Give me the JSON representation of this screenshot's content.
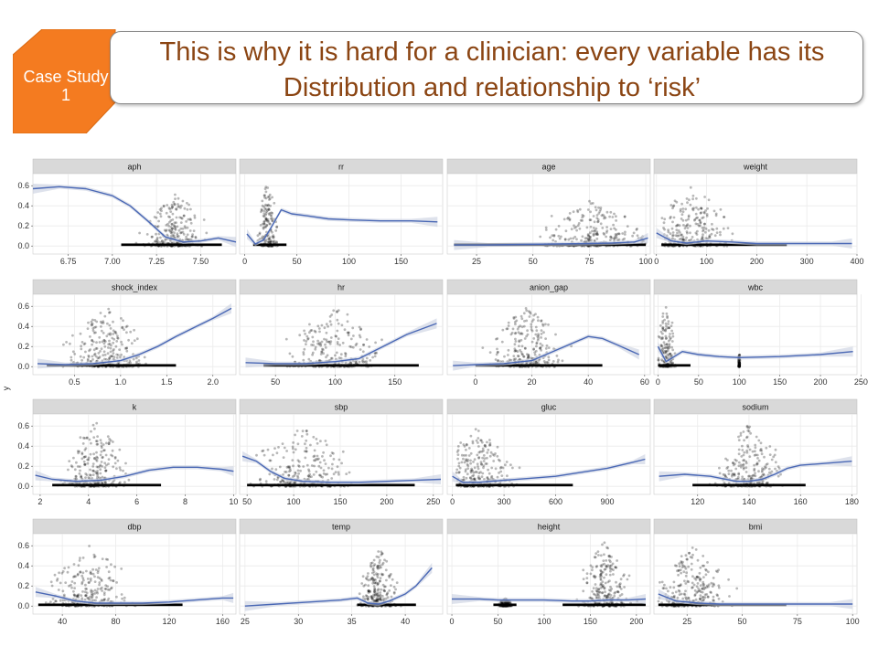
{
  "header": {
    "badge_line1": "Case Study",
    "badge_line2": "1",
    "title_line1": "This is why it is hard for a clinician: every variable has its",
    "title_line2": "Distribution and relationship to ‘risk’"
  },
  "colors": {
    "badge_fill": "#f47b20",
    "title_text": "#8b4513",
    "strip_fill": "#d9d9d9",
    "panel_fill": "#ffffff",
    "grid": "#ebebeb",
    "smooth_line": "#4a68b5",
    "ribbon": "#c8cfe0",
    "points": "#000000"
  },
  "chart_data": {
    "type": "scatter",
    "title": "",
    "ylabel": "y",
    "ylim": [
      -0.08,
      0.72
    ],
    "y_ticks": [
      "0.0",
      "0.2",
      "0.4",
      "0.6"
    ],
    "y_tick_values": [
      0.0,
      0.2,
      0.4,
      0.6
    ],
    "panels": [
      {
        "name": "aph",
        "xlim": [
          6.55,
          7.7
        ],
        "x_ticks": [
          6.75,
          7.0,
          7.25,
          7.5
        ],
        "x_tick_labels": [
          "6.75",
          "7.00",
          "7.25",
          "7.50"
        ],
        "curve": {
          "x": [
            6.55,
            6.7,
            6.85,
            7.0,
            7.1,
            7.2,
            7.3,
            7.4,
            7.5,
            7.6,
            7.7
          ],
          "y": [
            0.57,
            0.59,
            0.57,
            0.5,
            0.4,
            0.25,
            0.09,
            0.04,
            0.05,
            0.08,
            0.04
          ]
        },
        "clouds": [
          {
            "x0": 7.05,
            "x1": 7.62,
            "c": 7.35,
            "h": 0.55
          }
        ]
      },
      {
        "name": "rr",
        "xlim": [
          -5,
          190
        ],
        "x_ticks": [
          0,
          50,
          100,
          150
        ],
        "x_tick_labels": [
          "0",
          "50",
          "100",
          "150"
        ],
        "curve": {
          "x": [
            2,
            10,
            18,
            25,
            35,
            45,
            60,
            80,
            100,
            130,
            160,
            185
          ],
          "y": [
            0.12,
            0.02,
            0.06,
            0.18,
            0.36,
            0.32,
            0.3,
            0.27,
            0.26,
            0.25,
            0.25,
            0.24
          ]
        },
        "clouds": [
          {
            "x0": 8,
            "x1": 40,
            "c": 22,
            "h": 0.65
          }
        ]
      },
      {
        "name": "age",
        "xlim": [
          12,
          102
        ],
        "x_ticks": [
          25,
          50,
          75,
          100
        ],
        "x_tick_labels": [
          "25",
          "50",
          "75",
          "100"
        ],
        "curve": {
          "x": [
            15,
            30,
            45,
            60,
            75,
            85,
            95,
            101
          ],
          "y": [
            0.01,
            0.01,
            0.015,
            0.02,
            0.025,
            0.03,
            0.04,
            0.08
          ]
        },
        "clouds": [
          {
            "x0": 15,
            "x1": 100,
            "c": 75,
            "h": 0.45
          }
        ]
      },
      {
        "name": "weight",
        "xlim": [
          -5,
          400
        ],
        "x_ticks": [
          0,
          100,
          200,
          300,
          400
        ],
        "x_tick_labels": [
          "0",
          "100",
          "200",
          "300",
          "400"
        ],
        "curve": {
          "x": [
            0,
            30,
            60,
            100,
            150,
            200,
            250,
            300,
            350,
            390
          ],
          "y": [
            0.13,
            0.05,
            0.03,
            0.05,
            0.04,
            0.025,
            0.025,
            0.025,
            0.025,
            0.025
          ]
        },
        "clouds": [
          {
            "x0": 10,
            "x1": 260,
            "c": 70,
            "h": 0.6
          }
        ]
      },
      {
        "name": "shock_index",
        "xlim": [
          0.05,
          2.25
        ],
        "x_ticks": [
          0.5,
          1.0,
          1.5,
          2.0
        ],
        "x_tick_labels": [
          "0.5",
          "1.0",
          "1.5",
          "2.0"
        ],
        "curve": {
          "x": [
            0.1,
            0.4,
            0.7,
            1.0,
            1.2,
            1.4,
            1.6,
            1.8,
            2.0,
            2.2
          ],
          "y": [
            0.03,
            0.02,
            0.03,
            0.06,
            0.12,
            0.2,
            0.3,
            0.39,
            0.48,
            0.58
          ]
        },
        "clouds": [
          {
            "x0": 0.2,
            "x1": 1.6,
            "c": 0.85,
            "h": 0.6
          }
        ]
      },
      {
        "name": "hr",
        "xlim": [
          20,
          190
        ],
        "x_ticks": [
          50,
          100,
          150
        ],
        "x_tick_labels": [
          "50",
          "100",
          "150"
        ],
        "curve": {
          "x": [
            25,
            50,
            75,
            100,
            120,
            140,
            160,
            185
          ],
          "y": [
            0.04,
            0.03,
            0.03,
            0.05,
            0.08,
            0.2,
            0.32,
            0.43
          ]
        },
        "clouds": [
          {
            "x0": 40,
            "x1": 170,
            "c": 100,
            "h": 0.6
          }
        ]
      },
      {
        "name": "anion_gap",
        "xlim": [
          -10,
          62
        ],
        "x_ticks": [
          0,
          20,
          40,
          60
        ],
        "x_tick_labels": [
          "0",
          "20",
          "40",
          "60"
        ],
        "curve": {
          "x": [
            -8,
            0,
            10,
            20,
            30,
            40,
            45,
            50,
            58
          ],
          "y": [
            0.01,
            0.02,
            0.03,
            0.06,
            0.18,
            0.3,
            0.28,
            0.22,
            0.12
          ]
        },
        "clouds": [
          {
            "x0": 0,
            "x1": 45,
            "c": 18,
            "h": 0.6
          }
        ]
      },
      {
        "name": "wbc",
        "xlim": [
          -5,
          245
        ],
        "x_ticks": [
          0,
          50,
          100,
          150,
          200,
          250
        ],
        "x_tick_labels": [
          "0",
          "50",
          "100",
          "150",
          "200",
          "250"
        ],
        "curve": {
          "x": [
            0,
            10,
            20,
            30,
            50,
            75,
            100,
            150,
            200,
            240
          ],
          "y": [
            0.2,
            0.05,
            0.1,
            0.15,
            0.12,
            0.1,
            0.09,
            0.1,
            0.12,
            0.15
          ]
        },
        "clouds": [
          {
            "x0": 0,
            "x1": 40,
            "c": 10,
            "h": 0.65
          },
          {
            "x0": 98,
            "x1": 102,
            "c": 100,
            "h": 0.15
          }
        ]
      },
      {
        "name": "k",
        "xlim": [
          1.7,
          10.1
        ],
        "x_ticks": [
          2,
          4,
          6,
          8,
          10
        ],
        "x_tick_labels": [
          "2",
          "4",
          "6",
          "8",
          "10"
        ],
        "curve": {
          "x": [
            1.8,
            2.5,
            3.5,
            4.5,
            5.5,
            6.5,
            7.5,
            8.5,
            9.5,
            10
          ],
          "y": [
            0.11,
            0.07,
            0.05,
            0.06,
            0.1,
            0.16,
            0.19,
            0.19,
            0.17,
            0.15
          ]
        },
        "clouds": [
          {
            "x0": 2.5,
            "x1": 7,
            "c": 4.3,
            "h": 0.65
          }
        ]
      },
      {
        "name": "sbp",
        "xlim": [
          42,
          260
        ],
        "x_ticks": [
          50,
          100,
          150,
          200,
          250
        ],
        "x_tick_labels": [
          "50",
          "100",
          "150",
          "200",
          "250"
        ],
        "curve": {
          "x": [
            45,
            60,
            75,
            90,
            110,
            140,
            170,
            200,
            230,
            258
          ],
          "y": [
            0.3,
            0.25,
            0.15,
            0.08,
            0.05,
            0.04,
            0.04,
            0.05,
            0.06,
            0.07
          ]
        },
        "clouds": [
          {
            "x0": 50,
            "x1": 230,
            "c": 110,
            "h": 0.6
          }
        ]
      },
      {
        "name": "gluc",
        "xlim": [
          -30,
          1150
        ],
        "x_ticks": [
          0,
          300,
          600,
          900
        ],
        "x_tick_labels": [
          "0",
          "300",
          "600",
          "900"
        ],
        "curve": {
          "x": [
            0,
            60,
            150,
            300,
            450,
            600,
            750,
            900,
            1050,
            1120
          ],
          "y": [
            0.1,
            0.04,
            0.04,
            0.06,
            0.08,
            0.1,
            0.14,
            0.18,
            0.24,
            0.27
          ]
        },
        "clouds": [
          {
            "x0": 20,
            "x1": 700,
            "c": 150,
            "h": 0.6
          }
        ]
      },
      {
        "name": "sodium",
        "xlim": [
          103,
          182
        ],
        "x_ticks": [
          120,
          140,
          160,
          180
        ],
        "x_tick_labels": [
          "120",
          "140",
          "160",
          "180"
        ],
        "curve": {
          "x": [
            105,
            115,
            125,
            135,
            140,
            145,
            150,
            155,
            160,
            170,
            180
          ],
          "y": [
            0.1,
            0.12,
            0.1,
            0.05,
            0.05,
            0.07,
            0.12,
            0.18,
            0.21,
            0.23,
            0.25
          ]
        },
        "clouds": [
          {
            "x0": 118,
            "x1": 162,
            "c": 140,
            "h": 0.62
          }
        ]
      },
      {
        "name": "dbp",
        "xlim": [
          18,
          170
        ],
        "x_ticks": [
          40,
          80,
          120,
          160
        ],
        "x_tick_labels": [
          "40",
          "80",
          "120",
          "160"
        ],
        "curve": {
          "x": [
            20,
            35,
            50,
            65,
            80,
            100,
            120,
            140,
            160,
            168
          ],
          "y": [
            0.14,
            0.1,
            0.05,
            0.03,
            0.03,
            0.03,
            0.04,
            0.06,
            0.08,
            0.08
          ]
        },
        "clouds": [
          {
            "x0": 22,
            "x1": 130,
            "c": 60,
            "h": 0.6
          }
        ]
      },
      {
        "name": "temp",
        "xlim": [
          24.5,
          43.5
        ],
        "x_ticks": [
          25,
          30,
          35,
          40
        ],
        "x_tick_labels": [
          "25",
          "30",
          "35",
          "40"
        ],
        "curve": {
          "x": [
            25,
            28,
            31,
            34,
            35.5,
            36.5,
            37.5,
            38.5,
            40,
            41,
            42.5
          ],
          "y": [
            0.0,
            0.02,
            0.04,
            0.06,
            0.08,
            0.03,
            0.02,
            0.05,
            0.12,
            0.2,
            0.38
          ]
        },
        "clouds": [
          {
            "x0": 35.5,
            "x1": 41,
            "c": 37.5,
            "h": 0.6
          }
        ]
      },
      {
        "name": "height",
        "xlim": [
          -5,
          215
        ],
        "x_ticks": [
          0,
          50,
          100,
          150,
          200
        ],
        "x_tick_labels": [
          "0",
          "50",
          "100",
          "150",
          "200"
        ],
        "curve": {
          "x": [
            0,
            30,
            50,
            70,
            100,
            130,
            150,
            170,
            190,
            210
          ],
          "y": [
            0.07,
            0.07,
            0.06,
            0.06,
            0.06,
            0.05,
            0.05,
            0.06,
            0.06,
            0.07
          ]
        },
        "clouds": [
          {
            "x0": 120,
            "x1": 210,
            "c": 165,
            "h": 0.65
          },
          {
            "x0": 45,
            "x1": 70,
            "c": 58,
            "h": 0.08
          }
        ]
      },
      {
        "name": "bmi",
        "xlim": [
          10,
          102
        ],
        "x_ticks": [
          25,
          50,
          75,
          100
        ],
        "x_tick_labels": [
          "25",
          "50",
          "75",
          "100"
        ],
        "curve": {
          "x": [
            12,
            20,
            30,
            40,
            50,
            60,
            70,
            80,
            90,
            100
          ],
          "y": [
            0.12,
            0.05,
            0.03,
            0.02,
            0.02,
            0.02,
            0.02,
            0.02,
            0.02,
            0.02
          ]
        },
        "clouds": [
          {
            "x0": 12,
            "x1": 70,
            "c": 27,
            "h": 0.6
          }
        ]
      }
    ]
  }
}
